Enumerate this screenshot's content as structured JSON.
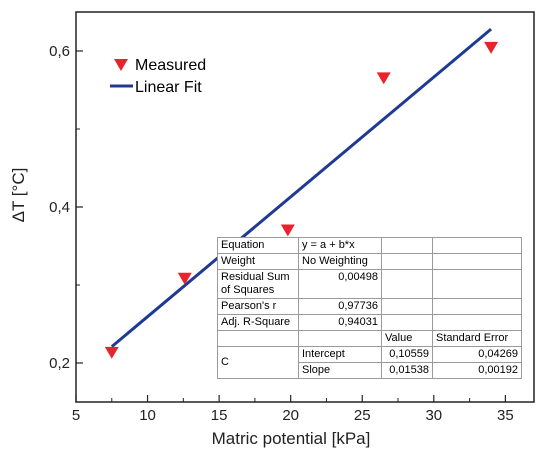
{
  "chart_data": {
    "type": "scatter",
    "xlabel": "Matric potential [kPa]",
    "ylabel": "ΔT [°C]",
    "xlim": [
      5,
      37
    ],
    "ylim": [
      0.15,
      0.65
    ],
    "xticks": [
      "5",
      "10",
      "15",
      "20",
      "25",
      "30",
      "35"
    ],
    "xtick_values": [
      5,
      10,
      15,
      20,
      25,
      30,
      35
    ],
    "yticks": [
      "0,2",
      "0,4",
      "0,6"
    ],
    "ytick_values": [
      0.2,
      0.4,
      0.6
    ],
    "grid": false,
    "legend_position": "top-left",
    "series": [
      {
        "name": "Measured",
        "kind": "scatter",
        "marker": "triangle-down",
        "color": "#e8232e",
        "x": [
          7.5,
          12.6,
          19.8,
          26.5,
          34.0
        ],
        "y": [
          0.213,
          0.308,
          0.37,
          0.565,
          0.604
        ]
      },
      {
        "name": "Linear Fit",
        "kind": "line",
        "color": "#1f3a93",
        "x": [
          7.5,
          34.0
        ],
        "y": [
          0.221,
          0.628
        ]
      }
    ],
    "fit_table": {
      "equation_label": "Equation",
      "equation": "y = a + b*x",
      "weight_label": "Weight",
      "weight": "No Weighting",
      "rss_label": "Residual Sum of Squares",
      "rss": "0,00498",
      "pearson_label": "Pearson's r",
      "pearson": "0,97736",
      "adjr2_label": "Adj. R-Square",
      "adjr2": "0,94031",
      "value_header": "Value",
      "stderr_header": "Standard Error",
      "group_label": "C",
      "rows": [
        {
          "name": "Intercept",
          "value": "0,10559",
          "stderr": "0,04269"
        },
        {
          "name": "Slope",
          "value": "0,01538",
          "stderr": "0,00192"
        }
      ]
    }
  }
}
